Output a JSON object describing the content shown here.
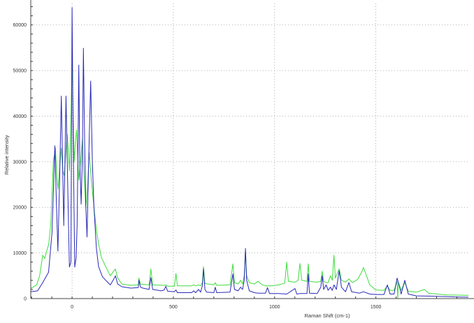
{
  "chart_data": {
    "type": "line",
    "title": "",
    "xlabel": "Raman Shift (cm-1)",
    "ylabel": "Relative intensity",
    "xlim": [
      -204,
      1957
    ],
    "ylim": [
      0,
      64700
    ],
    "xticks": [
      0,
      500,
      1000,
      1500
    ],
    "xtick_labels": [
      "0",
      "500",
      "1000",
      "1500"
    ],
    "yticks": [
      0,
      10000,
      20000,
      30000,
      40000,
      50000,
      60000
    ],
    "ytick_labels": [
      "0",
      "10000",
      "20000",
      "30000",
      "40000",
      "50000",
      "60000"
    ],
    "grid": true,
    "legend": "none",
    "series": [
      {
        "color": "#2a2ab8",
        "points": [
          [
            -204,
            1500
          ],
          [
            -170,
            1700
          ],
          [
            -145,
            3500
          ],
          [
            -116,
            5800
          ],
          [
            -99,
            14500
          ],
          [
            -91,
            25000
          ],
          [
            -85,
            33500
          ],
          [
            -78,
            22000
          ],
          [
            -70,
            10400
          ],
          [
            -62,
            25000
          ],
          [
            -53,
            44400
          ],
          [
            -47,
            30000
          ],
          [
            -41,
            16000
          ],
          [
            -36,
            28000
          ],
          [
            -30,
            44400
          ],
          [
            -22,
            26000
          ],
          [
            -13,
            6900
          ],
          [
            -6,
            8000
          ],
          [
            0,
            63800
          ],
          [
            5,
            38000
          ],
          [
            13,
            6900
          ],
          [
            20,
            9000
          ],
          [
            25,
            16000
          ],
          [
            29,
            32000
          ],
          [
            33,
            51200
          ],
          [
            38,
            30000
          ],
          [
            45,
            20700
          ],
          [
            51,
            32000
          ],
          [
            56,
            54900
          ],
          [
            62,
            34000
          ],
          [
            68,
            20000
          ],
          [
            74,
            13500
          ],
          [
            82,
            30000
          ],
          [
            92,
            47700
          ],
          [
            100,
            30000
          ],
          [
            108,
            20000
          ],
          [
            120,
            11000
          ],
          [
            131,
            7000
          ],
          [
            150,
            4800
          ],
          [
            166,
            4000
          ],
          [
            189,
            3000
          ],
          [
            205,
            4200
          ],
          [
            214,
            5000
          ],
          [
            225,
            3200
          ],
          [
            246,
            2600
          ],
          [
            290,
            2300
          ],
          [
            327,
            2400
          ],
          [
            330,
            4000
          ],
          [
            338,
            2500
          ],
          [
            350,
            2300
          ],
          [
            380,
            2000
          ],
          [
            389,
            4600
          ],
          [
            398,
            2000
          ],
          [
            440,
            1700
          ],
          [
            455,
            1900
          ],
          [
            463,
            2700
          ],
          [
            472,
            1600
          ],
          [
            505,
            1500
          ],
          [
            513,
            1900
          ],
          [
            520,
            1300
          ],
          [
            590,
            1300
          ],
          [
            601,
            1700
          ],
          [
            610,
            1300
          ],
          [
            625,
            2000
          ],
          [
            635,
            1400
          ],
          [
            643,
            2800
          ],
          [
            649,
            6500
          ],
          [
            656,
            2000
          ],
          [
            665,
            1400
          ],
          [
            700,
            1300
          ],
          [
            707,
            2500
          ],
          [
            714,
            1300
          ],
          [
            780,
            1400
          ],
          [
            794,
            5400
          ],
          [
            802,
            2000
          ],
          [
            820,
            1700
          ],
          [
            832,
            2500
          ],
          [
            842,
            2000
          ],
          [
            850,
            4000
          ],
          [
            856,
            11000
          ],
          [
            862,
            4000
          ],
          [
            875,
            1700
          ],
          [
            900,
            1300
          ],
          [
            918,
            1200
          ],
          [
            955,
            1200
          ],
          [
            965,
            2400
          ],
          [
            975,
            1100
          ],
          [
            1020,
            1100
          ],
          [
            1060,
            1000
          ],
          [
            1101,
            2200
          ],
          [
            1110,
            1000
          ],
          [
            1125,
            1100
          ],
          [
            1160,
            1100
          ],
          [
            1166,
            5400
          ],
          [
            1172,
            1200
          ],
          [
            1210,
            1100
          ],
          [
            1228,
            2500
          ],
          [
            1235,
            5000
          ],
          [
            1242,
            2000
          ],
          [
            1255,
            3000
          ],
          [
            1264,
            1800
          ],
          [
            1276,
            2500
          ],
          [
            1285,
            1800
          ],
          [
            1293,
            3000
          ],
          [
            1305,
            2000
          ],
          [
            1319,
            6100
          ],
          [
            1330,
            2500
          ],
          [
            1350,
            1500
          ],
          [
            1367,
            3500
          ],
          [
            1380,
            1500
          ],
          [
            1420,
            1200
          ],
          [
            1439,
            1500
          ],
          [
            1470,
            1000
          ],
          [
            1500,
            900
          ],
          [
            1540,
            900
          ],
          [
            1557,
            3000
          ],
          [
            1570,
            1000
          ],
          [
            1590,
            1000
          ],
          [
            1605,
            4500
          ],
          [
            1615,
            3000
          ],
          [
            1625,
            1000
          ],
          [
            1643,
            4000
          ],
          [
            1660,
            1000
          ],
          [
            1700,
            600
          ],
          [
            1800,
            500
          ],
          [
            1900,
            350
          ],
          [
            1957,
            300
          ]
        ]
      },
      {
        "color": "#3ddc3d",
        "points": [
          [
            -204,
            2200
          ],
          [
            -175,
            3000
          ],
          [
            -160,
            5000
          ],
          [
            -145,
            9500
          ],
          [
            -135,
            8800
          ],
          [
            -128,
            10000
          ],
          [
            -115,
            12000
          ],
          [
            -105,
            16500
          ],
          [
            -97,
            25000
          ],
          [
            -93,
            30000
          ],
          [
            -82,
            33000
          ],
          [
            -76,
            27000
          ],
          [
            -70,
            24000
          ],
          [
            -62,
            28000
          ],
          [
            -53,
            33000
          ],
          [
            -46,
            28000
          ],
          [
            -39,
            27000
          ],
          [
            -32,
            31000
          ],
          [
            -24,
            36000
          ],
          [
            -18,
            32000
          ],
          [
            -13,
            28000
          ],
          [
            -5,
            40000
          ],
          [
            0,
            52000
          ],
          [
            5,
            42000
          ],
          [
            10,
            30000
          ],
          [
            16,
            34000
          ],
          [
            22,
            37000
          ],
          [
            28,
            31000
          ],
          [
            33,
            26000
          ],
          [
            42,
            30000
          ],
          [
            51,
            35000
          ],
          [
            58,
            28000
          ],
          [
            68,
            20000
          ],
          [
            76,
            24000
          ],
          [
            85,
            32000
          ],
          [
            95,
            26000
          ],
          [
            108,
            20000
          ],
          [
            120,
            15000
          ],
          [
            131,
            12000
          ],
          [
            145,
            9000
          ],
          [
            166,
            7000
          ],
          [
            189,
            5000
          ],
          [
            205,
            6000
          ],
          [
            214,
            6500
          ],
          [
            225,
            4500
          ],
          [
            246,
            3200
          ],
          [
            290,
            2900
          ],
          [
            320,
            3000
          ],
          [
            327,
            3000
          ],
          [
            330,
            4500
          ],
          [
            338,
            3200
          ],
          [
            380,
            3000
          ],
          [
            389,
            6500
          ],
          [
            398,
            3000
          ],
          [
            455,
            2900
          ],
          [
            463,
            3000
          ],
          [
            472,
            2700
          ],
          [
            505,
            2700
          ],
          [
            513,
            5500
          ],
          [
            520,
            2800
          ],
          [
            590,
            2800
          ],
          [
            601,
            3000
          ],
          [
            612,
            2800
          ],
          [
            625,
            3000
          ],
          [
            635,
            2800
          ],
          [
            643,
            3500
          ],
          [
            649,
            7000
          ],
          [
            656,
            3300
          ],
          [
            700,
            3000
          ],
          [
            707,
            3500
          ],
          [
            714,
            2900
          ],
          [
            780,
            3000
          ],
          [
            794,
            7600
          ],
          [
            802,
            3500
          ],
          [
            820,
            3200
          ],
          [
            832,
            4000
          ],
          [
            842,
            3200
          ],
          [
            850,
            5000
          ],
          [
            856,
            10500
          ],
          [
            862,
            5000
          ],
          [
            875,
            3500
          ],
          [
            900,
            3200
          ],
          [
            918,
            3800
          ],
          [
            940,
            3000
          ],
          [
            955,
            2800
          ],
          [
            965,
            2800
          ],
          [
            980,
            2800
          ],
          [
            1020,
            3000
          ],
          [
            1050,
            3400
          ],
          [
            1060,
            8000
          ],
          [
            1068,
            3800
          ],
          [
            1100,
            3600
          ],
          [
            1116,
            4000
          ],
          [
            1125,
            7700
          ],
          [
            1134,
            4000
          ],
          [
            1160,
            3800
          ],
          [
            1166,
            7600
          ],
          [
            1172,
            3800
          ],
          [
            1210,
            3600
          ],
          [
            1228,
            3800
          ],
          [
            1235,
            6000
          ],
          [
            1242,
            3800
          ],
          [
            1255,
            3500
          ],
          [
            1264,
            3500
          ],
          [
            1276,
            5000
          ],
          [
            1285,
            4000
          ],
          [
            1293,
            9500
          ],
          [
            1300,
            4500
          ],
          [
            1319,
            6500
          ],
          [
            1330,
            4000
          ],
          [
            1350,
            3600
          ],
          [
            1367,
            4300
          ],
          [
            1385,
            3500
          ],
          [
            1410,
            4200
          ],
          [
            1430,
            5800
          ],
          [
            1439,
            6800
          ],
          [
            1450,
            5500
          ],
          [
            1470,
            3000
          ],
          [
            1500,
            1900
          ],
          [
            1540,
            1800
          ],
          [
            1557,
            2800
          ],
          [
            1570,
            1800
          ],
          [
            1590,
            1800
          ],
          [
            1605,
            3800
          ],
          [
            1608,
            0
          ],
          [
            1611,
            3500
          ],
          [
            1625,
            1800
          ],
          [
            1643,
            3500
          ],
          [
            1660,
            1600
          ],
          [
            1700,
            1400
          ],
          [
            1740,
            2000
          ],
          [
            1760,
            1200
          ],
          [
            1850,
            800
          ],
          [
            1957,
            700
          ]
        ]
      }
    ]
  }
}
